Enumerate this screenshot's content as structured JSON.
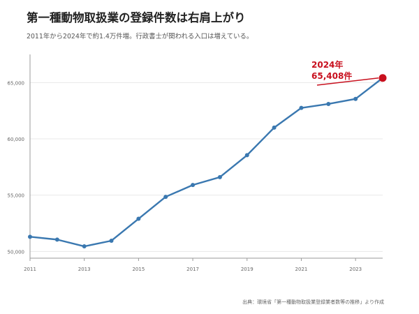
{
  "header": {
    "title": "第一種動物取扱業の登録件数は右肩上がり",
    "subtitle": "2011年から2024年で約1.4万件増。行政書士が関われる入口は増えている。"
  },
  "footer": {
    "source": "出典：環境省「第一種動物取扱業登録業者数等の推移」より作成"
  },
  "chart_data": {
    "type": "line",
    "title": "第一種動物取扱業の登録件数は右肩上がり",
    "subtitle": "2011年から2024年で約1.4万件増。行政書士が関われる入口は増えている。",
    "xlabel": "",
    "ylabel": "",
    "x": [
      2011,
      2012,
      2013,
      2014,
      2015,
      2016,
      2017,
      2018,
      2019,
      2020,
      2021,
      2022,
      2023,
      2024
    ],
    "series": [
      {
        "values": [
          51300,
          51050,
          50450,
          50950,
          52900,
          54850,
          55900,
          56600,
          58550,
          61000,
          62750,
          63100,
          63550,
          65408
        ]
      }
    ],
    "x_ticks": [
      "2011",
      "2013",
      "2015",
      "2017",
      "2019",
      "2021",
      "2023"
    ],
    "y_ticks": [
      "50,000",
      "55,000",
      "60,000",
      "65,000"
    ],
    "xlim": [
      2011,
      2024
    ],
    "ylim": [
      49400,
      67500
    ],
    "grid": true,
    "annotation": {
      "year_label": "2024年",
      "value_label": "65,408件"
    },
    "colors": {
      "line": "#3a78b0",
      "highlight": "#c8101e",
      "grid": "#e8e8e8",
      "axis": "#9a9a9a",
      "tick_text": "#666666"
    }
  }
}
